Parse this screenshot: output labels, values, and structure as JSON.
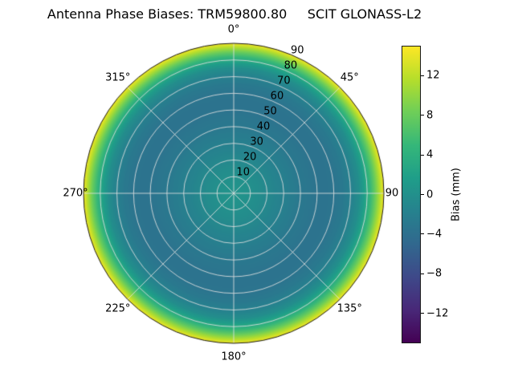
{
  "title": "Antenna Phase Biases: TRM59800.80     SCIT GLONASS-L2",
  "chart_data": {
    "type": "heatmap",
    "projection": "polar",
    "title": "Antenna Phase Biases: TRM59800.80     SCIT GLONASS-L2",
    "grid": true,
    "angular_tick_labels": [
      "0°",
      "45°",
      "90",
      "135°",
      "180°",
      "225°",
      "270°",
      "315°"
    ],
    "angular_tick_degrees": [
      0,
      45,
      90,
      135,
      180,
      225,
      270,
      315
    ],
    "radial_tick_labels": [
      "10",
      "20",
      "30",
      "40",
      "50",
      "60",
      "70",
      "80",
      "90"
    ],
    "radial_tick_values": [
      10,
      20,
      30,
      40,
      50,
      60,
      70,
      80,
      90
    ],
    "radial_axis_max": 90,
    "radial_label_azimuth_deg": 24,
    "colormap": "viridis",
    "colorbar": {
      "label": "Bias (mm)",
      "tick_labels": [
        "12",
        "8",
        "4",
        "0",
        "−4",
        "−8",
        "−12"
      ],
      "tick_values": [
        12,
        8,
        4,
        0,
        -4,
        -8,
        -12
      ],
      "vmin": -15,
      "vmax": 15
    },
    "radial_profile": {
      "zenith_deg": [
        0,
        5,
        10,
        15,
        20,
        25,
        30,
        35,
        40,
        45,
        50,
        55,
        60,
        65,
        70,
        75,
        78,
        81,
        84,
        87,
        90
      ],
      "bias_mm": [
        0.5,
        0.3,
        0.0,
        -0.4,
        -0.9,
        -1.4,
        -1.9,
        -2.4,
        -2.9,
        -3.2,
        -3.5,
        -3.6,
        -3.4,
        -2.9,
        -1.9,
        -0.3,
        1.6,
        4.2,
        7.2,
        10.8,
        14.5
      ]
    }
  },
  "colors": {
    "background": "#ffffff",
    "grid_line": "#e0e0e0",
    "outline": "#1a1a1a",
    "text": "#000000",
    "viridis_stops": [
      "#440154",
      "#482878",
      "#3e4989",
      "#31688e",
      "#26828e",
      "#1f9e89",
      "#35b779",
      "#6ece58",
      "#b5de2b",
      "#fde725"
    ]
  }
}
